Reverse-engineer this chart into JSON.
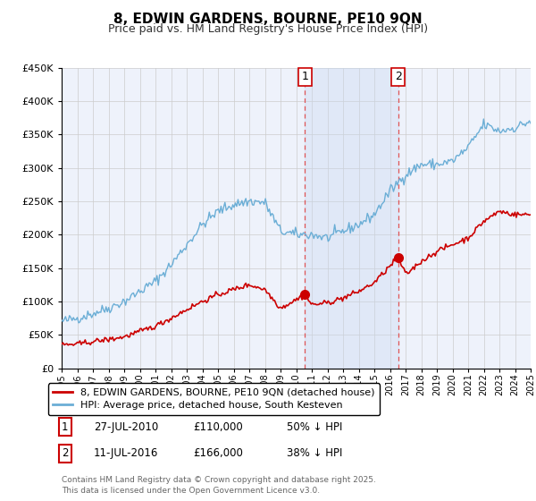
{
  "title": "8, EDWIN GARDENS, BOURNE, PE10 9QN",
  "subtitle": "Price paid vs. HM Land Registry's House Price Index (HPI)",
  "ylim": [
    0,
    450000
  ],
  "yticks": [
    0,
    50000,
    100000,
    150000,
    200000,
    250000,
    300000,
    350000,
    400000,
    450000
  ],
  "hpi_color": "#6baed6",
  "price_color": "#cc0000",
  "vline_color": "#e05555",
  "purchase1_date": 2010.57,
  "purchase1_price": 110000,
  "purchase2_date": 2016.53,
  "purchase2_price": 166000,
  "legend_price_label": "8, EDWIN GARDENS, BOURNE, PE10 9QN (detached house)",
  "legend_hpi_label": "HPI: Average price, detached house, South Kesteven",
  "table_row1_num": "1",
  "table_row1_date": "27-JUL-2010",
  "table_row1_price": "£110,000",
  "table_row1_hpi": "50% ↓ HPI",
  "table_row2_num": "2",
  "table_row2_date": "11-JUL-2016",
  "table_row2_price": "£166,000",
  "table_row2_hpi": "38% ↓ HPI",
  "footnote": "Contains HM Land Registry data © Crown copyright and database right 2025.\nThis data is licensed under the Open Government Licence v3.0.",
  "bg_color": "#ffffff",
  "plot_bg_color": "#eef2fb",
  "grid_color": "#cccccc",
  "shade_color": "#c8d8f0"
}
